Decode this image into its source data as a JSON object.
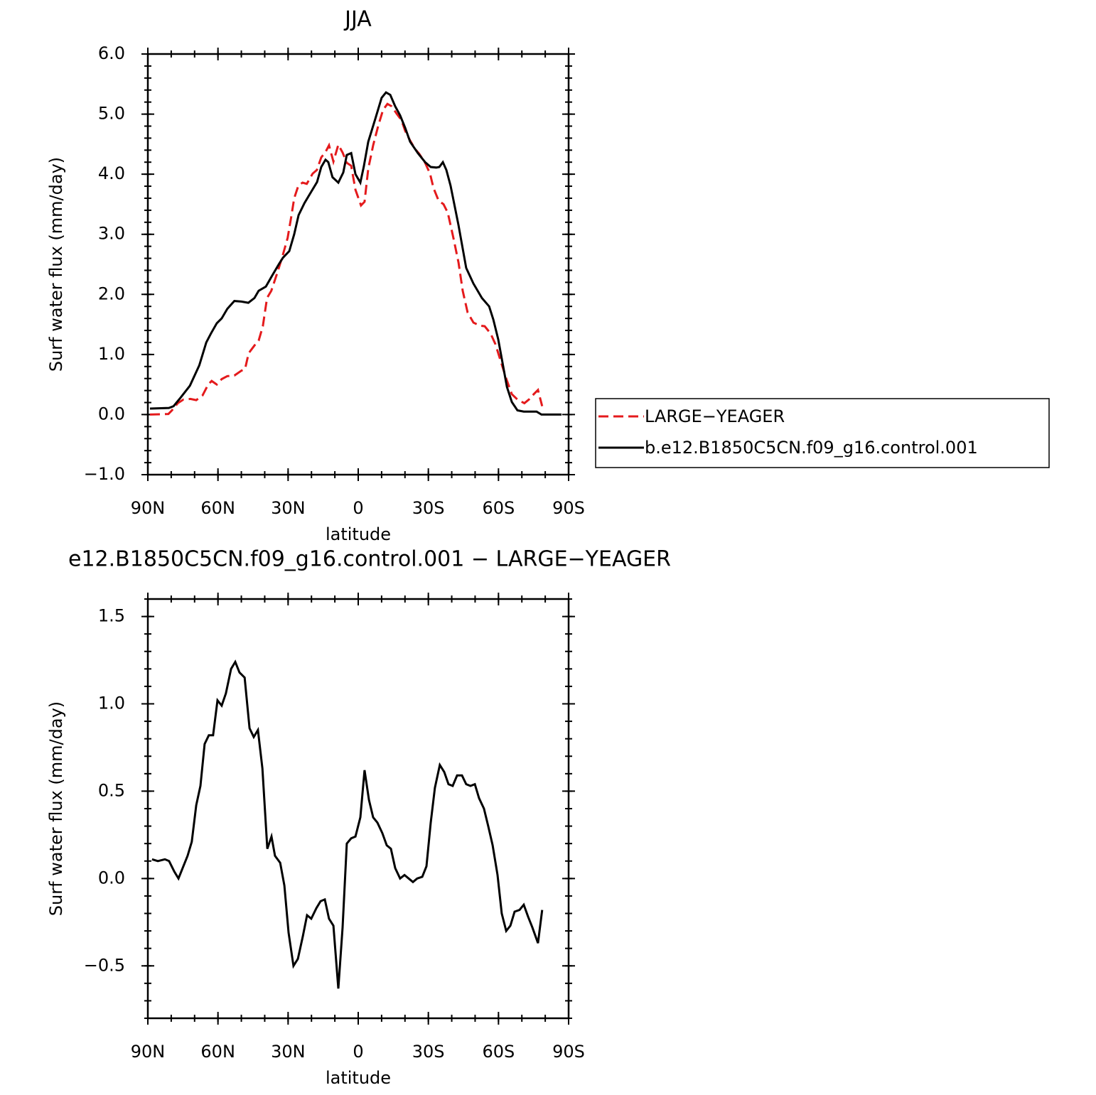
{
  "chart_data": [
    {
      "type": "line",
      "title": "JJA",
      "xlabel": "latitude",
      "ylabel": "Surf  water  flux  (mm/day)",
      "xlim": [
        90,
        -90
      ],
      "xticks": [
        {
          "value": 90,
          "label": "90N"
        },
        {
          "value": 60,
          "label": "60N"
        },
        {
          "value": 30,
          "label": "30N"
        },
        0,
        {
          "value": -30,
          "label": "30S"
        },
        {
          "value": -60,
          "label": "60S"
        },
        {
          "value": -90,
          "label": "90S"
        }
      ],
      "ylim": [
        -1,
        6
      ],
      "yticks": [
        {
          "value": -1,
          "label": "−1.0"
        },
        {
          "value": 0,
          "label": "0.0"
        },
        {
          "value": 1,
          "label": "1.0"
        },
        {
          "value": 2,
          "label": "2.0"
        },
        {
          "value": 3,
          "label": "3.0"
        },
        {
          "value": 4,
          "label": "4.0"
        },
        {
          "value": 5,
          "label": "5.0"
        },
        {
          "value": 6,
          "label": "6.0"
        }
      ],
      "legend": "outside right",
      "series": [
        {
          "name": "LARGE−YEAGER",
          "color": "#e41a1c",
          "line_style": "dashed",
          "x": [
            89.1,
            81.2,
            79.7,
            77.2,
            74.8,
            71.8,
            69.3,
            66.6,
            64.2,
            62.7,
            60.5,
            58.4,
            56,
            53,
            50,
            48.4,
            46.9,
            44.4,
            42.6,
            40.8,
            39,
            37.2,
            34.7,
            32.3,
            30.2,
            28.6,
            27.4,
            25.6,
            23.8,
            22,
            19.5,
            17.7,
            15.8,
            14,
            12.5,
            10.6,
            8.5,
            6.7,
            4.9,
            3,
            1.2,
            -1.2,
            -2.7,
            -4.3,
            -6.4,
            -8.5,
            -10.6,
            -12.5,
            -14.3,
            -16.4,
            -18.5,
            -20.1,
            -22.2,
            -24.3,
            -26.1,
            -28.6,
            -30.7,
            -32.2,
            -34.4,
            -36.5,
            -38.3,
            -40.7,
            -42.9,
            -44.7,
            -46.8,
            -49.3,
            -52,
            -54.1,
            -56.6,
            -58.7,
            -61.1,
            -63.3,
            -65.7,
            -68.1,
            -71.1,
            -73.3,
            -75.1,
            -76.9,
            -78.7
          ],
          "values": [
            0.0,
            0.01,
            0.07,
            0.19,
            0.25,
            0.26,
            0.24,
            0.32,
            0.5,
            0.56,
            0.5,
            0.59,
            0.64,
            0.65,
            0.73,
            0.76,
            1.02,
            1.15,
            1.23,
            1.47,
            1.94,
            2.06,
            2.35,
            2.65,
            2.94,
            3.3,
            3.6,
            3.81,
            3.86,
            3.84,
            4.01,
            4.07,
            4.28,
            4.37,
            4.48,
            4.21,
            4.49,
            4.36,
            4.19,
            4.14,
            3.74,
            3.48,
            3.54,
            4.09,
            4.48,
            4.8,
            5.07,
            5.17,
            5.13,
            5.01,
            4.9,
            4.72,
            4.56,
            4.42,
            4.34,
            4.19,
            4.01,
            3.77,
            3.56,
            3.5,
            3.36,
            2.94,
            2.53,
            2.06,
            1.7,
            1.53,
            1.48,
            1.47,
            1.35,
            1.17,
            0.87,
            0.6,
            0.34,
            0.25,
            0.19,
            0.26,
            0.34,
            0.41,
            0.14
          ]
        },
        {
          "name": "b.e12.B1850C5CN.f09_g16.control.001",
          "color": "#000000",
          "line_style": "solid",
          "x": [
            89.1,
            81,
            79,
            76,
            72,
            68,
            65,
            63,
            60.5,
            58.4,
            56,
            53,
            50,
            47,
            44.4,
            42.6,
            39.5,
            37,
            34,
            32.2,
            29.5,
            27.4,
            25.5,
            23,
            20.7,
            17.6,
            15.8,
            14,
            12.8,
            11,
            8.5,
            6.4,
            4.9,
            3,
            1.2,
            -0.9,
            -2.4,
            -4.3,
            -7.3,
            -10,
            -11.9,
            -13.7,
            -15.8,
            -17.9,
            -20.1,
            -22.2,
            -25.5,
            -28.6,
            -31,
            -33.4,
            -34.7,
            -36.2,
            -37.7,
            -39.5,
            -42.9,
            -46.2,
            -49.3,
            -52.9,
            -56,
            -57.8,
            -59.9,
            -61.7,
            -63.6,
            -65.7,
            -68.1,
            -70.8,
            -73.3,
            -76.3,
            -78.4,
            -87
          ],
          "values": [
            0.1,
            0.11,
            0.14,
            0.28,
            0.48,
            0.82,
            1.2,
            1.35,
            1.52,
            1.6,
            1.76,
            1.89,
            1.88,
            1.86,
            1.94,
            2.06,
            2.13,
            2.3,
            2.5,
            2.61,
            2.72,
            3.0,
            3.32,
            3.52,
            3.67,
            3.87,
            4.12,
            4.24,
            4.2,
            3.95,
            3.86,
            4.03,
            4.32,
            4.35,
            4.0,
            3.86,
            4.13,
            4.54,
            4.92,
            5.27,
            5.36,
            5.32,
            5.13,
            4.98,
            4.77,
            4.54,
            4.35,
            4.2,
            4.12,
            4.11,
            4.12,
            4.2,
            4.07,
            3.81,
            3.15,
            2.44,
            2.18,
            1.94,
            1.8,
            1.58,
            1.25,
            0.87,
            0.46,
            0.21,
            0.07,
            0.05,
            0.05,
            0.05,
            0.0,
            0.0
          ]
        }
      ]
    },
    {
      "type": "line",
      "title": "e12.B1850C5CN.f09_g16.control.001 − LARGE−YEAGER",
      "xlabel": "latitude",
      "ylabel": "Surf water flux (mm/day)",
      "xlim": [
        90,
        -90
      ],
      "xticks": [
        {
          "value": 90,
          "label": "90N"
        },
        {
          "value": 60,
          "label": "60N"
        },
        {
          "value": 30,
          "label": "30N"
        },
        0,
        {
          "value": -30,
          "label": "30S"
        },
        {
          "value": -60,
          "label": "60S"
        },
        {
          "value": -90,
          "label": "90S"
        }
      ],
      "ylim": [
        -0.8,
        1.6
      ],
      "yticks": [
        {
          "value": -0.5,
          "label": "−0.5"
        },
        {
          "value": 0,
          "label": "0.0"
        },
        0.5,
        {
          "value": 1,
          "label": "1.0"
        },
        1.5
      ],
      "series": [
        {
          "color": "#000000",
          "line_style": "solid",
          "x": [
            88.2,
            85.7,
            82.7,
            80.9,
            78.7,
            76.9,
            75.1,
            73,
            71.2,
            69.3,
            67.5,
            65.7,
            63.9,
            62.1,
            60.2,
            58.4,
            56.6,
            54.4,
            52.6,
            50.8,
            48.6,
            46.5,
            44.7,
            42.9,
            41,
            38.9,
            37.1,
            35.6,
            33.4,
            31.6,
            29.8,
            27.7,
            25.8,
            23.7,
            21.9,
            20.1,
            17.9,
            16.1,
            14.3,
            12.5,
            10.6,
            8.5,
            6.7,
            4.9,
            3,
            1.2,
            -0.9,
            -2.7,
            -4.6,
            -6.4,
            -8.2,
            -10.3,
            -12.2,
            -14,
            -15.8,
            -17.9,
            -19.8,
            -21.6,
            -23.4,
            -25.2,
            -27.4,
            -29.2,
            -31,
            -32.8,
            -34.9,
            -36.8,
            -38.6,
            -40.4,
            -42.3,
            -44.4,
            -46.2,
            -48,
            -49.9,
            -51.7,
            -53.8,
            -55.6,
            -57.5,
            -59.6,
            -61.4,
            -63.3,
            -65.1,
            -66.9,
            -69,
            -70.8,
            -72.7,
            -74.5,
            -76.9,
            -78.7
          ],
          "values": [
            0.11,
            0.1,
            0.11,
            0.1,
            0.04,
            0.0,
            0.06,
            0.13,
            0.21,
            0.42,
            0.53,
            0.77,
            0.82,
            0.82,
            1.02,
            0.99,
            1.06,
            1.2,
            1.24,
            1.18,
            1.15,
            0.86,
            0.81,
            0.85,
            0.63,
            0.17,
            0.24,
            0.13,
            0.09,
            -0.04,
            -0.31,
            -0.5,
            -0.46,
            -0.33,
            -0.21,
            -0.23,
            -0.17,
            -0.13,
            -0.12,
            -0.23,
            -0.27,
            -0.63,
            -0.28,
            0.2,
            0.23,
            0.24,
            0.35,
            0.62,
            0.45,
            0.35,
            0.32,
            0.26,
            0.19,
            0.17,
            0.06,
            0.0,
            0.02,
            0.0,
            -0.02,
            0.0,
            0.01,
            0.07,
            0.32,
            0.52,
            0.65,
            0.61,
            0.54,
            0.53,
            0.59,
            0.59,
            0.54,
            0.53,
            0.54,
            0.46,
            0.4,
            0.3,
            0.19,
            0.02,
            -0.2,
            -0.3,
            -0.27,
            -0.19,
            -0.18,
            -0.15,
            -0.22,
            -0.28,
            -0.37,
            -0.18
          ]
        }
      ]
    }
  ]
}
